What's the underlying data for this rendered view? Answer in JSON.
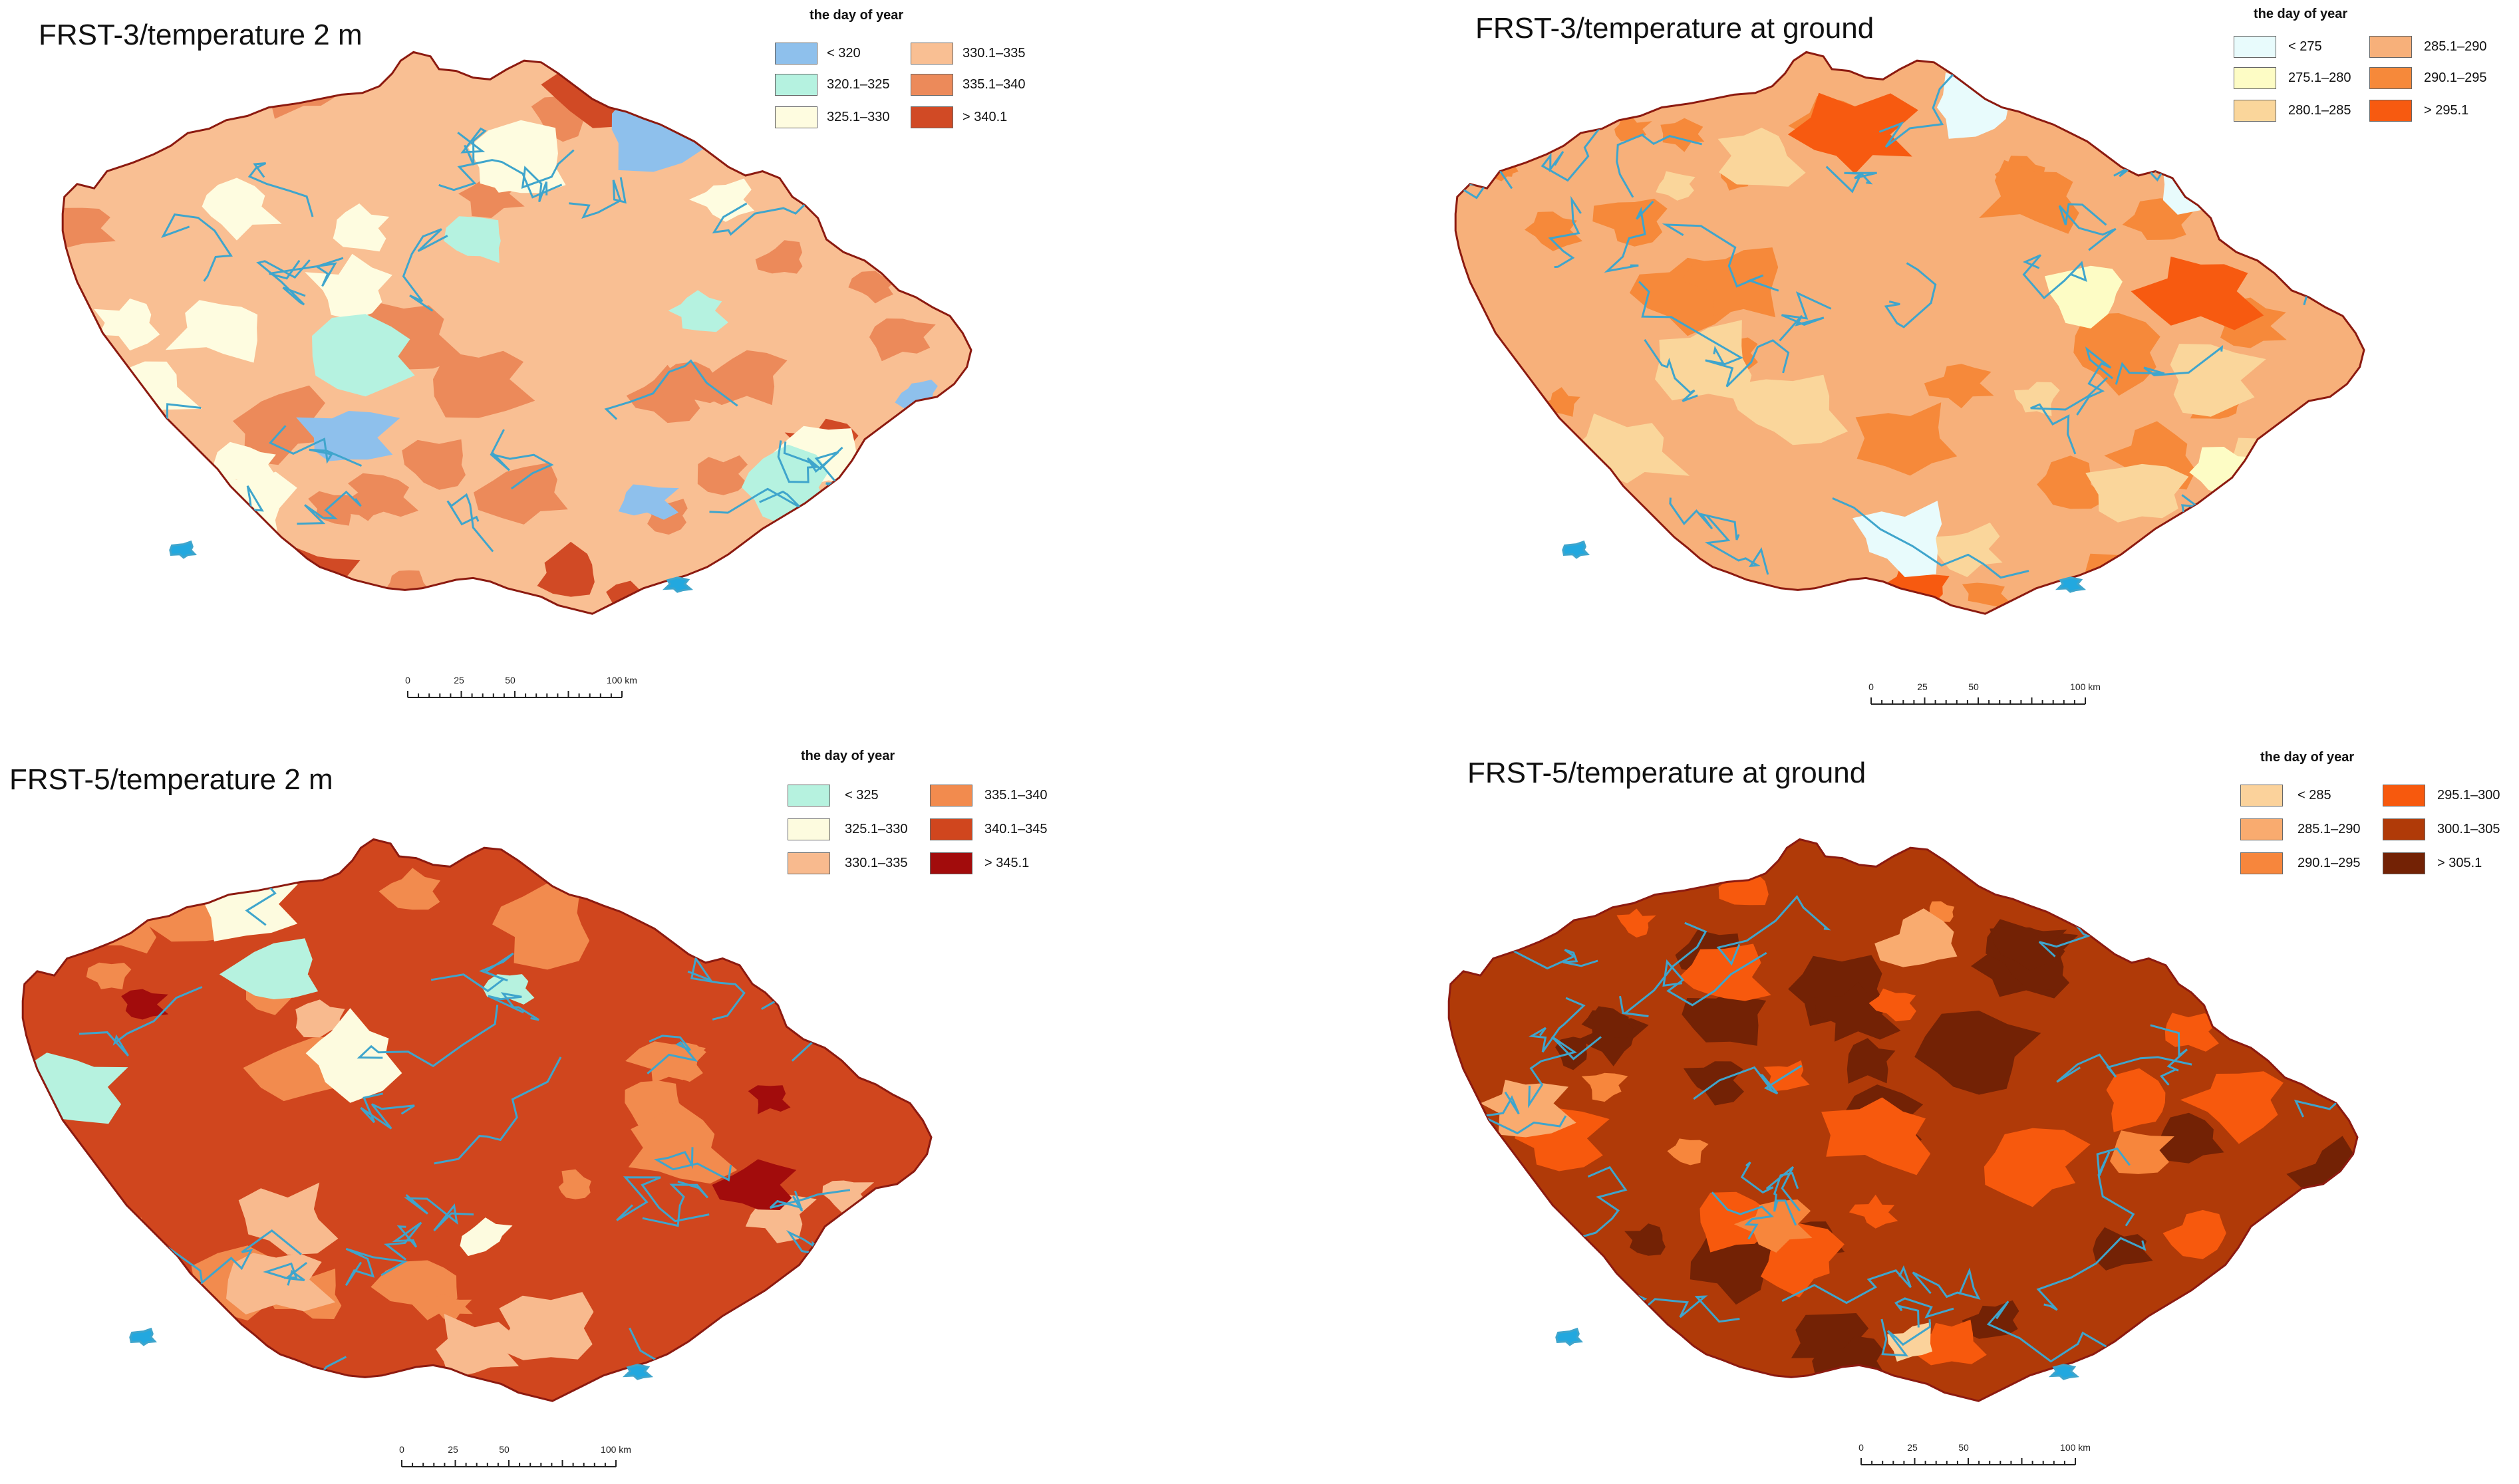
{
  "legend_title": "the day of year",
  "scale": {
    "labels": [
      "0",
      "25",
      "50",
      "100 km"
    ],
    "ticks_km": [
      0,
      25,
      50,
      100
    ]
  },
  "panels": [
    {
      "title": "FRST-3/temperature 2 m",
      "legend": [
        {
          "label": "< 320",
          "color": "#8ec0ec"
        },
        {
          "label": "320.1–325",
          "color": "#b5f2e0"
        },
        {
          "label": "325.1–330",
          "color": "#fefce0"
        },
        {
          "label": "330.1–335",
          "color": "#f9bf93"
        },
        {
          "label": "335.1–340",
          "color": "#ec8a5a"
        },
        {
          "label": "> 340.1",
          "color": "#d14a25"
        }
      ]
    },
    {
      "title": "FRST-3/temperature at ground",
      "legend": [
        {
          "label": "< 275",
          "color": "#e8fbfc"
        },
        {
          "label": "275.1–280",
          "color": "#fdfcc5"
        },
        {
          "label": "280.1–285",
          "color": "#fad69b"
        },
        {
          "label": "285.1–290",
          "color": "#f7b07a"
        },
        {
          "label": "290.1–295",
          "color": "#f6893a"
        },
        {
          "label": "> 295.1",
          "color": "#f75a10"
        }
      ]
    },
    {
      "title": "FRST-5/temperature 2 m",
      "legend": [
        {
          "label": "< 325",
          "color": "#b6f2df"
        },
        {
          "label": "325.1–330",
          "color": "#fdfbdf"
        },
        {
          "label": "330.1–335",
          "color": "#f8ba8e"
        },
        {
          "label": "335.1–340",
          "color": "#f28b4e"
        },
        {
          "label": "340.1–345",
          "color": "#d0461e"
        },
        {
          "label": "> 345.1",
          "color": "#a20c0c"
        }
      ]
    },
    {
      "title": "FRST-5/temperature at ground",
      "legend": [
        {
          "label": "< 285",
          "color": "#fbd29b"
        },
        {
          "label": "285.1–290",
          "color": "#f9ab6f"
        },
        {
          "label": "290.1–295",
          "color": "#f7863c"
        },
        {
          "label": "295.1–300",
          "color": "#f7590d"
        },
        {
          "label": "300.1–305",
          "color": "#b03a08"
        },
        {
          "label": "> 305.1",
          "color": "#732205"
        }
      ]
    }
  ],
  "map_colors": {
    "border": "#8c1a10",
    "river": "#3fa5cc",
    "lake": "#22a8df"
  }
}
